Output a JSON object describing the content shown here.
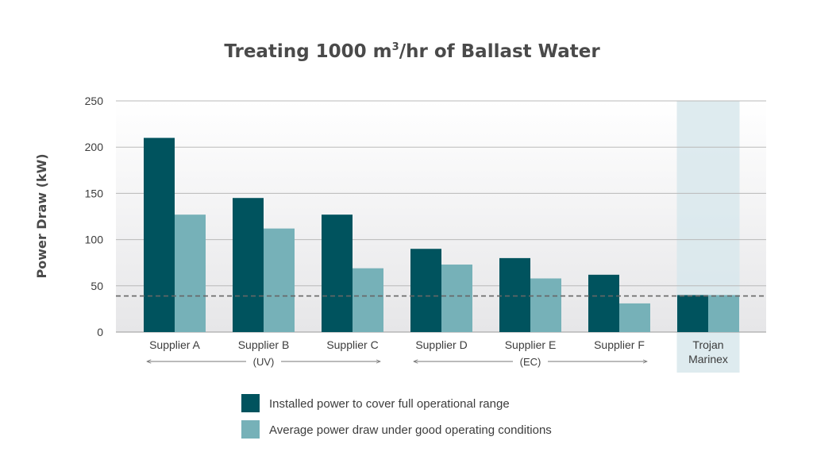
{
  "chart_data": {
    "type": "bar",
    "title": "Treating 1000 m",
    "title_superscript": "3",
    "title_suffix": "/hr of Ballast Water",
    "ylabel": "Power Draw (kW)",
    "xlabel": "",
    "ylim": [
      0,
      250
    ],
    "yticks": [
      "0",
      "50",
      "100",
      "150",
      "200",
      "250"
    ],
    "grid": true,
    "categories": [
      "Supplier A",
      "Supplier B",
      "Supplier C",
      "Supplier D",
      "Supplier E",
      "Supplier F",
      "Trojan Marinex"
    ],
    "series": [
      {
        "name": "Installed power to cover full operational range",
        "color": "#00535e",
        "values": [
          210,
          145,
          127,
          90,
          80,
          62,
          40
        ]
      },
      {
        "name": "Average power draw under good operating conditions",
        "color": "#76b1b8",
        "values": [
          127,
          112,
          69,
          73,
          58,
          31,
          40
        ]
      }
    ],
    "reference_line": {
      "value": 39,
      "style": "dashed"
    },
    "highlight_category": "Trojan Marinex",
    "highlight_color": "#d8e8ec",
    "groups": [
      {
        "label": "(UV)",
        "from": 0,
        "to": 2
      },
      {
        "label": "(EC)",
        "from": 3,
        "to": 5
      }
    ],
    "legend_placement": "bottom"
  }
}
